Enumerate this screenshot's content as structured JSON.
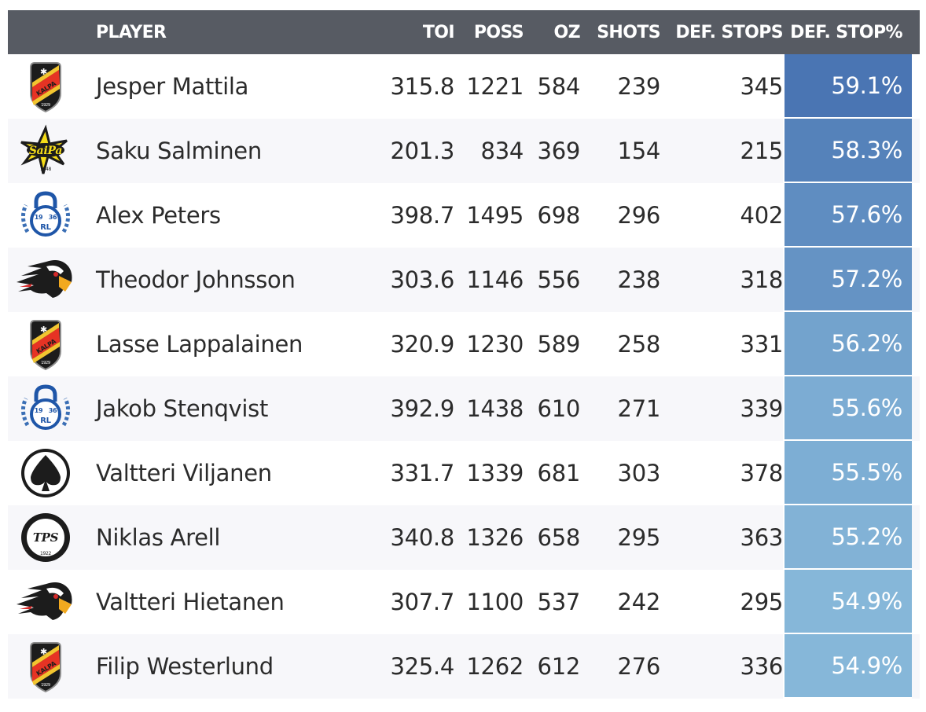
{
  "columns": {
    "player": "PLAYER",
    "toi": "TOI",
    "poss": "POSS",
    "oz": "OZ",
    "shots": "SHOTS",
    "def_stops": "DEF. STOPS",
    "def_stop_pct": "DEF. STOP%"
  },
  "colors": {
    "header_bg": "#575b63",
    "pct_high": "#4a75b3",
    "pct_low": "#86b7d9"
  },
  "rows": [
    {
      "logo": "kalpa-logo",
      "logo_text": "KALPA",
      "logo_year": "1929",
      "player": "Jesper Mattila",
      "toi": "315.8",
      "poss": "1221",
      "oz": "584",
      "shots": "239",
      "def_stops": "345",
      "def_stop_pct": "59.1%"
    },
    {
      "logo": "saipa-logo",
      "logo_text": "SaiPa",
      "logo_year": "1948",
      "player": "Saku Salminen",
      "toi": "201.3",
      "poss": "834",
      "oz": "369",
      "shots": "154",
      "def_stops": "215",
      "def_stop_pct": "58.3%"
    },
    {
      "logo": "lukko-logo",
      "logo_text": "RL",
      "logo_year": "1936",
      "player": "Alex Peters",
      "toi": "398.7",
      "poss": "1495",
      "oz": "698",
      "shots": "296",
      "def_stops": "402",
      "def_stop_pct": "57.6%"
    },
    {
      "logo": "eagle-logo",
      "player": "Theodor Johnsson",
      "toi": "303.6",
      "poss": "1146",
      "oz": "556",
      "shots": "238",
      "def_stops": "318",
      "def_stop_pct": "57.2%"
    },
    {
      "logo": "kalpa-logo",
      "logo_text": "KALPA",
      "logo_year": "1929",
      "player": "Lasse Lappalainen",
      "toi": "320.9",
      "poss": "1230",
      "oz": "589",
      "shots": "258",
      "def_stops": "331",
      "def_stop_pct": "56.2%"
    },
    {
      "logo": "lukko-logo",
      "logo_text": "RL",
      "logo_year": "1936",
      "player": "Jakob Stenqvist",
      "toi": "392.9",
      "poss": "1438",
      "oz": "610",
      "shots": "271",
      "def_stops": "339",
      "def_stop_pct": "55.6%"
    },
    {
      "logo": "spade-logo",
      "player": "Valtteri Viljanen",
      "toi": "331.7",
      "poss": "1339",
      "oz": "681",
      "shots": "303",
      "def_stops": "378",
      "def_stop_pct": "55.5%"
    },
    {
      "logo": "tps-logo",
      "logo_text": "TPS",
      "logo_year": "1922",
      "player": "Niklas Arell",
      "toi": "340.8",
      "poss": "1326",
      "oz": "658",
      "shots": "295",
      "def_stops": "363",
      "def_stop_pct": "55.2%"
    },
    {
      "logo": "eagle-logo",
      "player": "Valtteri Hietanen",
      "toi": "307.7",
      "poss": "1100",
      "oz": "537",
      "shots": "242",
      "def_stops": "295",
      "def_stop_pct": "54.9%"
    },
    {
      "logo": "kalpa-logo",
      "logo_text": "KALPA",
      "logo_year": "1929",
      "player": "Filip Westerlund",
      "toi": "325.4",
      "poss": "1262",
      "oz": "612",
      "shots": "276",
      "def_stops": "336",
      "def_stop_pct": "54.9%"
    }
  ],
  "chart_data": {
    "type": "table",
    "columns": [
      "PLAYER",
      "TOI",
      "POSS",
      "OZ",
      "SHOTS",
      "DEF. STOPS",
      "DEF. STOP%"
    ],
    "rows": [
      [
        "Jesper Mattila",
        315.8,
        1221,
        584,
        239,
        345,
        59.1
      ],
      [
        "Saku Salminen",
        201.3,
        834,
        369,
        154,
        215,
        58.3
      ],
      [
        "Alex Peters",
        398.7,
        1495,
        698,
        296,
        402,
        57.6
      ],
      [
        "Theodor Johnsson",
        303.6,
        1146,
        556,
        238,
        318,
        57.2
      ],
      [
        "Lasse Lappalainen",
        320.9,
        1230,
        589,
        258,
        331,
        56.2
      ],
      [
        "Jakob Stenqvist",
        392.9,
        1438,
        610,
        271,
        339,
        55.6
      ],
      [
        "Valtteri Viljanen",
        331.7,
        1339,
        681,
        303,
        378,
        55.5
      ],
      [
        "Niklas Arell",
        340.8,
        1326,
        658,
        295,
        363,
        55.2
      ],
      [
        "Valtteri Hietanen",
        307.7,
        1100,
        537,
        242,
        295,
        54.9
      ],
      [
        "Filip Westerlund",
        325.4,
        1262,
        612,
        276,
        336,
        54.9
      ]
    ]
  }
}
